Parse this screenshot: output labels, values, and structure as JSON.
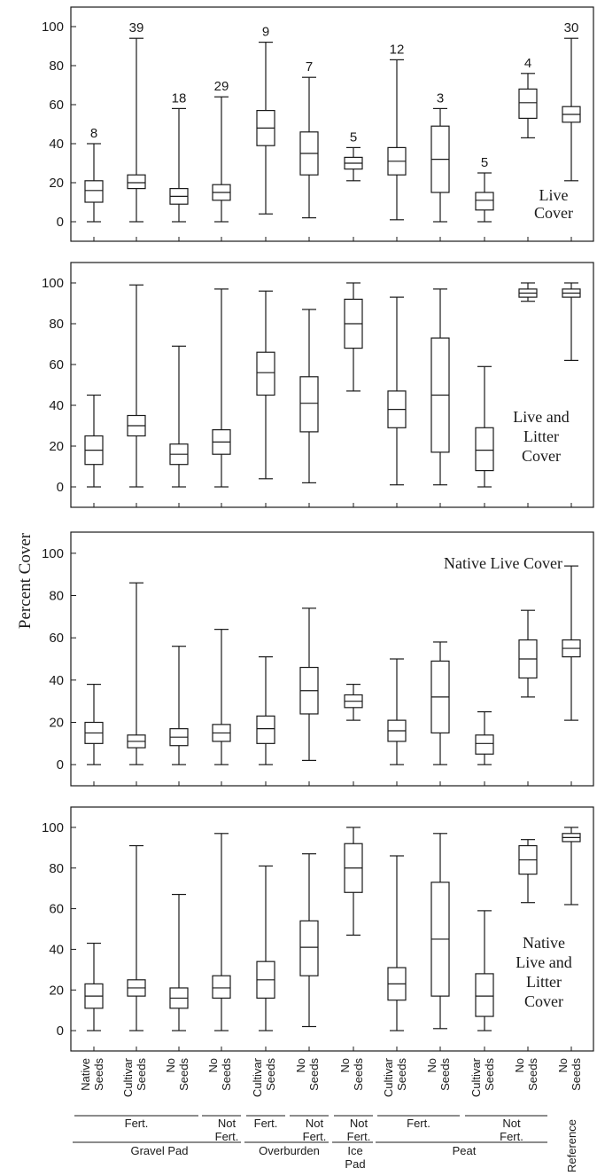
{
  "ylabel": "Percent Cover",
  "categories": [
    [
      "Native",
      "Seeds"
    ],
    [
      "Cultivar",
      "Seeds"
    ],
    [
      "No",
      "Seeds"
    ],
    [
      "No",
      "Seeds"
    ],
    [
      "Cultivar",
      "Seeds"
    ],
    [
      "No",
      "Seeds"
    ],
    [
      "No",
      "Seeds"
    ],
    [
      "Cultivar",
      "Seeds"
    ],
    [
      "No",
      "Seeds"
    ],
    [
      "Cultivar",
      "Seeds"
    ],
    [
      "No",
      "Seeds"
    ],
    [
      "No",
      "Seeds"
    ]
  ],
  "fert_groups": [
    {
      "lines": [
        "Fert."
      ],
      "from": 0,
      "to": 2
    },
    {
      "lines": [
        "Not",
        "Fert."
      ],
      "from": 3,
      "to": 3
    },
    {
      "lines": [
        "Fert."
      ],
      "from": 4,
      "to": 4
    },
    {
      "lines": [
        "Not",
        "Fert."
      ],
      "from": 5,
      "to": 5
    },
    {
      "lines": [
        "Not",
        "Fert."
      ],
      "from": 6,
      "to": 6
    },
    {
      "lines": [
        "Fert."
      ],
      "from": 7,
      "to": 8
    },
    {
      "lines": [
        "Not",
        "Fert."
      ],
      "from": 9,
      "to": 10
    }
  ],
  "site_groups": [
    {
      "lines": [
        "Gravel Pad"
      ],
      "from": 0,
      "to": 3
    },
    {
      "lines": [
        "Overburden"
      ],
      "from": 4,
      "to": 5
    },
    {
      "lines": [
        "Ice",
        "Pad"
      ],
      "from": 6,
      "to": 6
    },
    {
      "lines": [
        "Peat"
      ],
      "from": 7,
      "to": 10
    }
  ],
  "reference_label": "Reference",
  "chart_data": [
    {
      "type": "boxplot",
      "title": [
        "Live",
        "Cover"
      ],
      "ylim": [
        -10,
        110
      ],
      "yticks": [
        0,
        20,
        40,
        60,
        80,
        100
      ],
      "n": [
        "8",
        "39",
        "18",
        "29",
        "9",
        "7",
        "5",
        "12",
        "3",
        "5",
        "4",
        "30"
      ],
      "boxes": [
        {
          "min": 0,
          "q1": 10,
          "median": 16,
          "q3": 21,
          "max": 40
        },
        {
          "min": 0,
          "q1": 17,
          "median": 20,
          "q3": 24,
          "max": 94
        },
        {
          "min": 0,
          "q1": 9,
          "median": 13,
          "q3": 17,
          "max": 58
        },
        {
          "min": 0,
          "q1": 11,
          "median": 15,
          "q3": 19,
          "max": 64
        },
        {
          "min": 4,
          "q1": 39,
          "median": 48,
          "q3": 57,
          "max": 92
        },
        {
          "min": 2,
          "q1": 24,
          "median": 35,
          "q3": 46,
          "max": 74
        },
        {
          "min": 21,
          "q1": 27,
          "median": 30,
          "q3": 33,
          "max": 38
        },
        {
          "min": 1,
          "q1": 24,
          "median": 31,
          "q3": 38,
          "max": 83
        },
        {
          "min": 0,
          "q1": 15,
          "median": 32,
          "q3": 49,
          "max": 58
        },
        {
          "min": 0,
          "q1": 6,
          "median": 11,
          "q3": 15,
          "max": 25
        },
        {
          "min": 43,
          "q1": 53,
          "median": 61,
          "q3": 68,
          "max": 76
        },
        {
          "min": 21,
          "q1": 51,
          "median": 55,
          "q3": 59,
          "max": 94
        }
      ]
    },
    {
      "type": "boxplot",
      "title": [
        "Live and",
        "Litter",
        "Cover"
      ],
      "ylim": [
        -10,
        110
      ],
      "yticks": [
        0,
        20,
        40,
        60,
        80,
        100
      ],
      "boxes": [
        {
          "min": 0,
          "q1": 11,
          "median": 18,
          "q3": 25,
          "max": 45
        },
        {
          "min": 0,
          "q1": 25,
          "median": 30,
          "q3": 35,
          "max": 99
        },
        {
          "min": 0,
          "q1": 11,
          "median": 16,
          "q3": 21,
          "max": 69
        },
        {
          "min": 0,
          "q1": 16,
          "median": 22,
          "q3": 28,
          "max": 97
        },
        {
          "min": 4,
          "q1": 45,
          "median": 56,
          "q3": 66,
          "max": 96
        },
        {
          "min": 2,
          "q1": 27,
          "median": 41,
          "q3": 54,
          "max": 87
        },
        {
          "min": 47,
          "q1": 68,
          "median": 80,
          "q3": 92,
          "max": 100
        },
        {
          "min": 1,
          "q1": 29,
          "median": 38,
          "q3": 47,
          "max": 93
        },
        {
          "min": 1,
          "q1": 17,
          "median": 45,
          "q3": 73,
          "max": 97
        },
        {
          "min": 0,
          "q1": 8,
          "median": 18,
          "q3": 29,
          "max": 59
        },
        {
          "min": 91,
          "q1": 93,
          "median": 95,
          "q3": 97,
          "max": 100
        },
        {
          "min": 62,
          "q1": 93,
          "median": 95,
          "q3": 97,
          "max": 100
        }
      ]
    },
    {
      "type": "boxplot",
      "title": [
        "Native Live Cover"
      ],
      "ylim": [
        -10,
        110
      ],
      "yticks": [
        0,
        20,
        40,
        60,
        80,
        100
      ],
      "boxes": [
        {
          "min": 0,
          "q1": 10,
          "median": 15,
          "q3": 20,
          "max": 38
        },
        {
          "min": 0,
          "q1": 8,
          "median": 11,
          "q3": 14,
          "max": 86
        },
        {
          "min": 0,
          "q1": 9,
          "median": 13,
          "q3": 17,
          "max": 56
        },
        {
          "min": 0,
          "q1": 11,
          "median": 15,
          "q3": 19,
          "max": 64
        },
        {
          "min": 0,
          "q1": 10,
          "median": 17,
          "q3": 23,
          "max": 51
        },
        {
          "min": 2,
          "q1": 24,
          "median": 35,
          "q3": 46,
          "max": 74
        },
        {
          "min": 21,
          "q1": 27,
          "median": 30,
          "q3": 33,
          "max": 38
        },
        {
          "min": 0,
          "q1": 11,
          "median": 16,
          "q3": 21,
          "max": 50
        },
        {
          "min": 0,
          "q1": 15,
          "median": 32,
          "q3": 49,
          "max": 58
        },
        {
          "min": 0,
          "q1": 5,
          "median": 10,
          "q3": 14,
          "max": 25
        },
        {
          "min": 32,
          "q1": 41,
          "median": 50,
          "q3": 59,
          "max": 73
        },
        {
          "min": 21,
          "q1": 51,
          "median": 55,
          "q3": 59,
          "max": 94
        }
      ]
    },
    {
      "type": "boxplot",
      "title": [
        "Native",
        "Live and",
        "Litter",
        "Cover"
      ],
      "ylim": [
        -10,
        110
      ],
      "yticks": [
        0,
        20,
        40,
        60,
        80,
        100
      ],
      "boxes": [
        {
          "min": 0,
          "q1": 11,
          "median": 17,
          "q3": 23,
          "max": 43
        },
        {
          "min": 0,
          "q1": 17,
          "median": 21,
          "q3": 25,
          "max": 91
        },
        {
          "min": 0,
          "q1": 11,
          "median": 16,
          "q3": 21,
          "max": 67
        },
        {
          "min": 0,
          "q1": 16,
          "median": 21,
          "q3": 27,
          "max": 97
        },
        {
          "min": 0,
          "q1": 16,
          "median": 25,
          "q3": 34,
          "max": 81
        },
        {
          "min": 2,
          "q1": 27,
          "median": 41,
          "q3": 54,
          "max": 87
        },
        {
          "min": 47,
          "q1": 68,
          "median": 80,
          "q3": 92,
          "max": 100
        },
        {
          "min": 0,
          "q1": 15,
          "median": 23,
          "q3": 31,
          "max": 86
        },
        {
          "min": 1,
          "q1": 17,
          "median": 45,
          "q3": 73,
          "max": 97
        },
        {
          "min": 0,
          "q1": 7,
          "median": 17,
          "q3": 28,
          "max": 59
        },
        {
          "min": 63,
          "q1": 77,
          "median": 84,
          "q3": 91,
          "max": 94
        },
        {
          "min": 62,
          "q1": 93,
          "median": 95,
          "q3": 97,
          "max": 100
        }
      ]
    }
  ]
}
